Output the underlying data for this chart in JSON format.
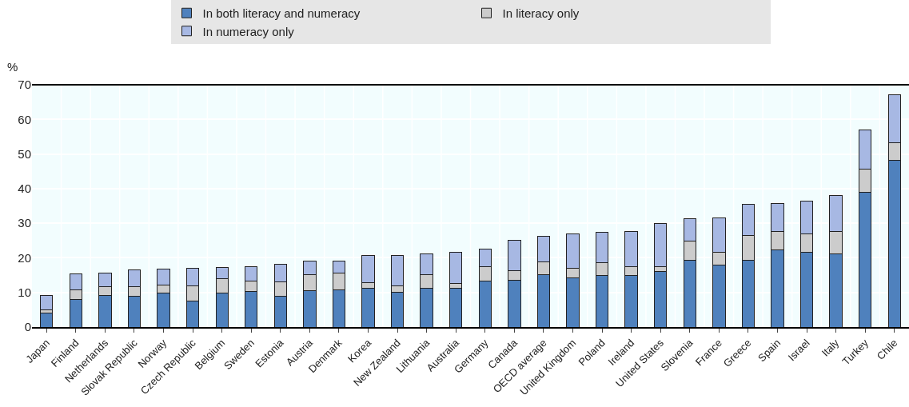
{
  "chart_data": {
    "type": "bar",
    "stacked": true,
    "ylabel": "%",
    "categories": [
      "Japan",
      "Finland",
      "Netherlands",
      "Slovak Republic",
      "Norway",
      "Czech Republic",
      "Belgium",
      "Sweden",
      "Estonia",
      "Austria",
      "Denmark",
      "Korea",
      "New Zealand",
      "Lithuania",
      "Australia",
      "Germany",
      "Canada",
      "OECD average",
      "United Kingdom",
      "Poland",
      "Ireland",
      "United States",
      "Slovenia",
      "France",
      "Greece",
      "Spain",
      "Israel",
      "Italy",
      "Turkey",
      "Chile"
    ],
    "series": [
      {
        "name": "In both literacy and numeracy",
        "color": "#4f81bd",
        "values": [
          4,
          8,
          9.2,
          8.8,
          9.9,
          7.6,
          9.9,
          10.3,
          9,
          10.4,
          10.7,
          11.1,
          10.1,
          11.2,
          11.1,
          13.3,
          13.6,
          15.2,
          14.3,
          14.8,
          14.8,
          16,
          19.4,
          18,
          19.4,
          22.4,
          21.5,
          21.2,
          39,
          48.2
        ]
      },
      {
        "name": "In literacy only",
        "color": "#cccccc",
        "values": [
          0.9,
          2.7,
          2.5,
          2.9,
          2.3,
          4.2,
          4.1,
          3,
          4,
          4.8,
          4.9,
          1.8,
          1.9,
          3.9,
          1.5,
          4.2,
          2.8,
          3.7,
          2.7,
          3.9,
          2.6,
          1.4,
          5.5,
          3.5,
          7,
          5.1,
          5.5,
          6.5,
          6.7,
          5.1
        ]
      },
      {
        "name": "In numeracy only",
        "color": "#a7b8e3",
        "values": [
          4.3,
          4.7,
          3.9,
          4.8,
          4.6,
          5.1,
          3.3,
          4.1,
          5.2,
          3.9,
          3.5,
          7.7,
          8.7,
          6.1,
          8.9,
          5,
          8.7,
          7.4,
          9.8,
          8.7,
          10.3,
          12.6,
          6.3,
          10,
          9.1,
          8.2,
          9.3,
          10.3,
          11.2,
          13.8
        ]
      }
    ],
    "ylim": [
      0,
      70
    ],
    "yticks": [
      0,
      10,
      20,
      30,
      40,
      50,
      60,
      70
    ],
    "grid": true,
    "legend": "top"
  }
}
